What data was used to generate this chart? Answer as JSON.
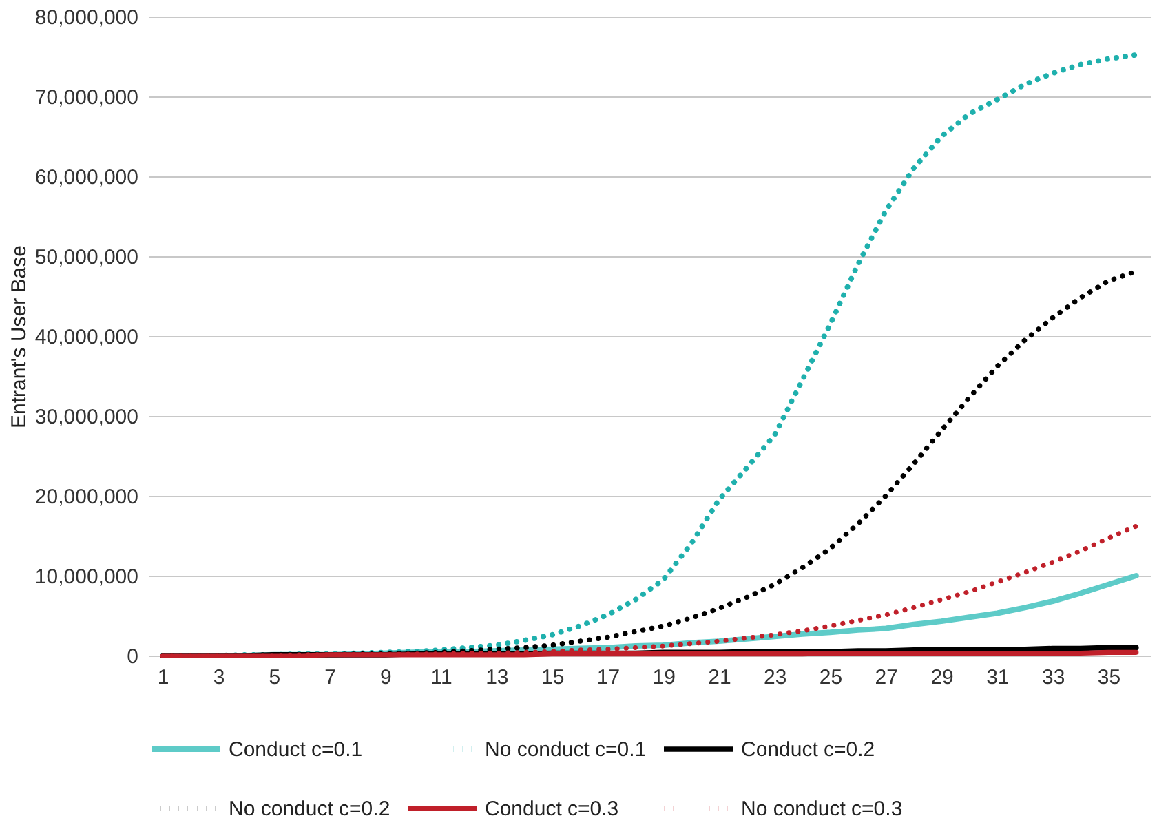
{
  "chart_data": {
    "type": "line",
    "ylabel": "Entrant's User Base",
    "x": [
      1,
      2,
      3,
      4,
      5,
      6,
      7,
      8,
      9,
      10,
      11,
      12,
      13,
      14,
      15,
      16,
      17,
      18,
      19,
      20,
      21,
      22,
      23,
      24,
      25,
      26,
      27,
      28,
      29,
      30,
      31,
      32,
      33,
      34,
      35,
      36
    ],
    "xlim": [
      0.5,
      36.5
    ],
    "xticks": [
      1,
      3,
      5,
      7,
      9,
      11,
      13,
      15,
      17,
      19,
      21,
      23,
      25,
      27,
      29,
      31,
      33,
      35
    ],
    "ylim": [
      0,
      80000000
    ],
    "yticks": [
      {
        "value": 0,
        "label": "0"
      },
      {
        "value": 10000000,
        "label": "10,000,000"
      },
      {
        "value": 20000000,
        "label": "20,000,000"
      },
      {
        "value": 30000000,
        "label": "30,000,000"
      },
      {
        "value": 40000000,
        "label": "40,000,000"
      },
      {
        "value": 50000000,
        "label": "50,000,000"
      },
      {
        "value": 60000000,
        "label": "60,000,000"
      },
      {
        "value": 70000000,
        "label": "70,000,000"
      },
      {
        "value": 80000000,
        "label": "80,000,000"
      }
    ],
    "grid": "y",
    "legend": "bottom",
    "marker": "none",
    "series": [
      {
        "name": "Conduct c=0.1",
        "color": "#5ecbc8",
        "line_style": "solid",
        "values": [
          0,
          0,
          0,
          0,
          100000,
          100000,
          100000,
          200000,
          300000,
          400000,
          500000,
          500000,
          600000,
          700000,
          800000,
          900000,
          1000000,
          1200000,
          1300000,
          1600000,
          1800000,
          2100000,
          2400000,
          2700000,
          2900000,
          3200000,
          3400000,
          3900000,
          4300000,
          4800000,
          5300000,
          6000000,
          6800000,
          7800000,
          8900000,
          10000000
        ]
      },
      {
        "name": "No conduct c=0.1",
        "color": "#1fb0ad",
        "line_style": "dotted",
        "values": [
          0,
          0,
          0,
          100000,
          100000,
          200000,
          200000,
          300000,
          400000,
          500000,
          700000,
          1000000,
          1300000,
          1900000,
          2600000,
          3700000,
          5100000,
          7000000,
          9500000,
          14000000,
          19500000,
          23500000,
          27600000,
          34500000,
          41500000,
          49000000,
          55700000,
          61000000,
          65000000,
          67800000,
          69600000,
          71500000,
          72900000,
          74000000,
          74700000,
          75200000
        ]
      },
      {
        "name": "Conduct c=0.2",
        "color": "#000000",
        "line_style": "solid",
        "values": [
          0,
          0,
          0,
          0,
          100000,
          100000,
          100000,
          100000,
          100000,
          200000,
          200000,
          200000,
          200000,
          200000,
          300000,
          300000,
          300000,
          300000,
          400000,
          400000,
          400000,
          500000,
          500000,
          500000,
          500000,
          600000,
          600000,
          700000,
          700000,
          700000,
          800000,
          800000,
          900000,
          900000,
          1000000,
          1000000
        ]
      },
      {
        "name": "No conduct c=0.2",
        "color": "#000000",
        "line_style": "dotted",
        "values": [
          0,
          0,
          0,
          0,
          100000,
          100000,
          100000,
          200000,
          200000,
          300000,
          400000,
          600000,
          800000,
          1000000,
          1300000,
          1800000,
          2300000,
          3000000,
          3700000,
          4700000,
          5900000,
          7300000,
          8900000,
          11000000,
          13400000,
          16500000,
          20000000,
          24000000,
          28200000,
          32300000,
          36200000,
          39500000,
          42300000,
          44800000,
          46900000,
          48100000
        ]
      },
      {
        "name": "Conduct c=0.3",
        "color": "#c0202a",
        "line_style": "solid",
        "values": [
          0,
          0,
          0,
          0,
          0,
          0,
          100000,
          100000,
          100000,
          100000,
          100000,
          100000,
          100000,
          100000,
          200000,
          200000,
          200000,
          200000,
          200000,
          200000,
          200000,
          200000,
          200000,
          200000,
          300000,
          300000,
          300000,
          300000,
          300000,
          300000,
          300000,
          300000,
          300000,
          300000,
          400000,
          400000
        ]
      },
      {
        "name": "No conduct c=0.3",
        "color": "#c0202a",
        "line_style": "dotted",
        "values": [
          0,
          0,
          0,
          0,
          0,
          100000,
          100000,
          100000,
          100000,
          200000,
          200000,
          300000,
          300000,
          400000,
          500000,
          700000,
          800000,
          1000000,
          1200000,
          1500000,
          1800000,
          2200000,
          2600000,
          3100000,
          3700000,
          4400000,
          5100000,
          6000000,
          7000000,
          8000000,
          9200000,
          10400000,
          11700000,
          13100000,
          14700000,
          16200000
        ]
      }
    ]
  }
}
